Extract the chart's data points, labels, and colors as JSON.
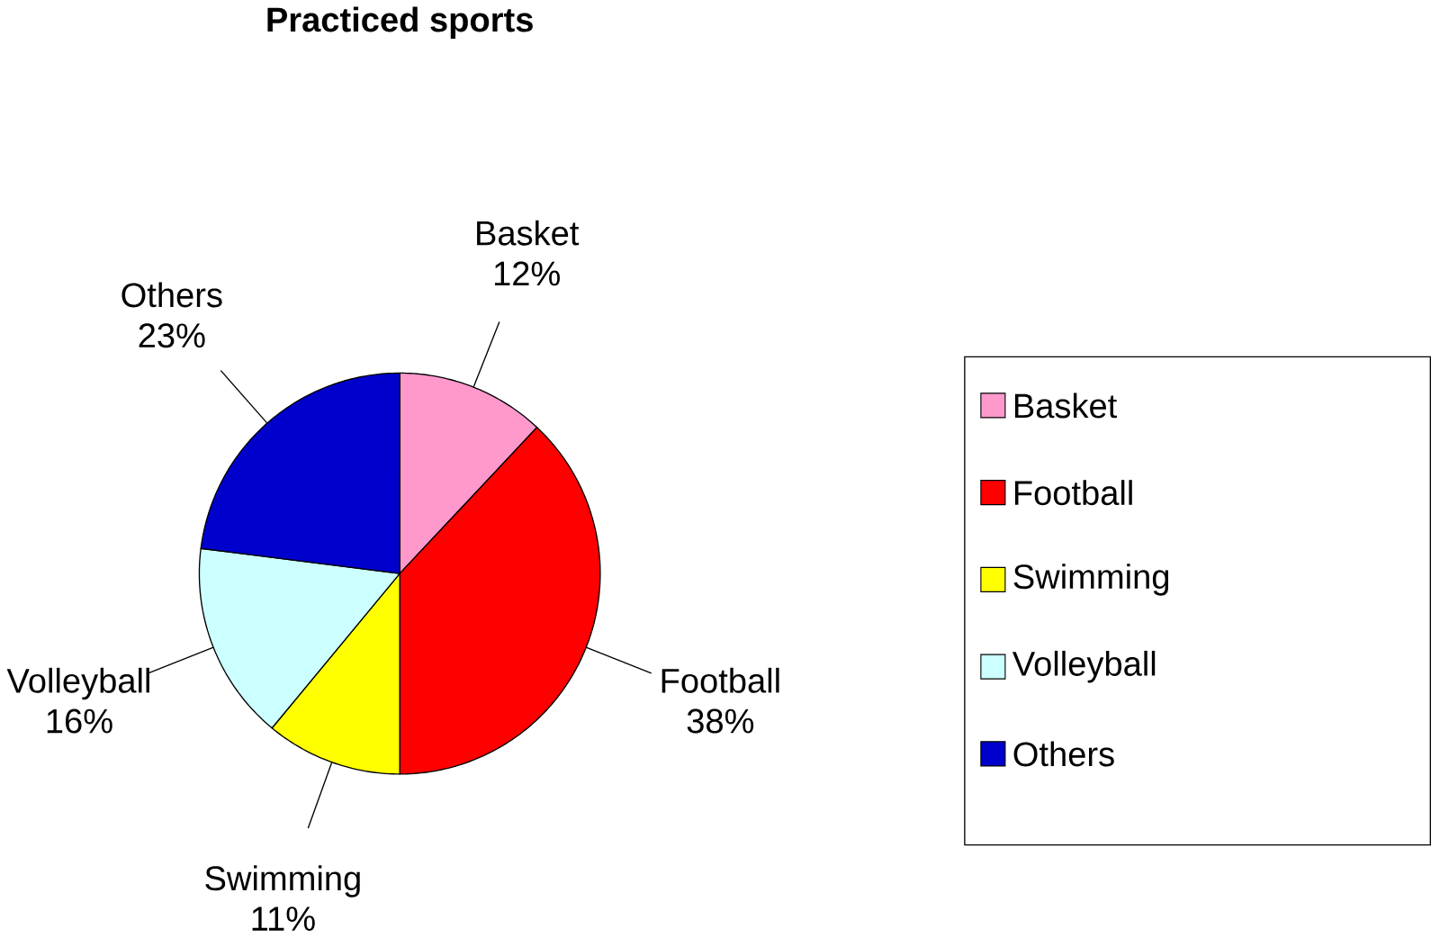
{
  "chart_data": {
    "type": "pie",
    "title": "Practiced sports",
    "categories": [
      "Basket",
      "Football",
      "Swimming",
      "Volleyball",
      "Others"
    ],
    "values": [
      12,
      38,
      11,
      16,
      23
    ],
    "value_labels": [
      "12%",
      "38%",
      "11%",
      "16%",
      "23%"
    ],
    "colors": [
      "#ff99cc",
      "#ff0000",
      "#ffff00",
      "#ccffff",
      "#0000cc"
    ],
    "legend": "right"
  }
}
